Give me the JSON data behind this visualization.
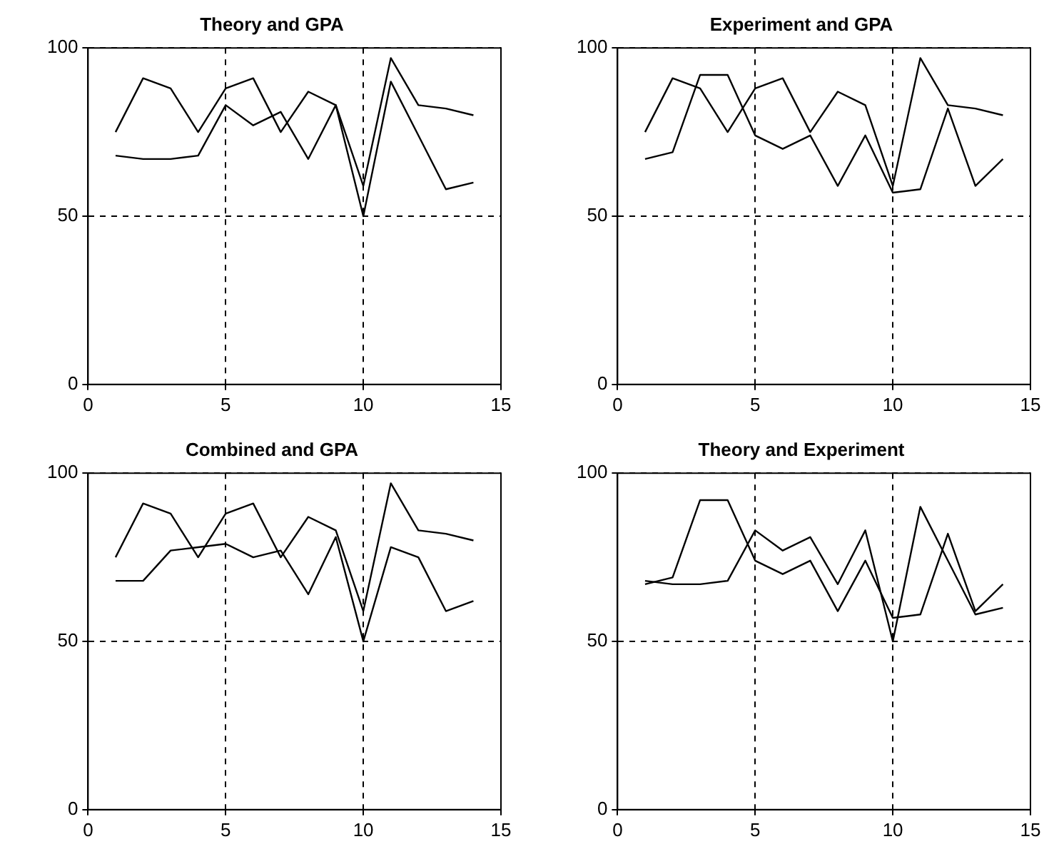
{
  "chart_data": [
    {
      "type": "line",
      "title": "Theory and GPA",
      "x": [
        1,
        2,
        3,
        4,
        5,
        6,
        7,
        8,
        9,
        10,
        11,
        12,
        13,
        14
      ],
      "xlim": [
        0,
        15
      ],
      "xticks": [
        0,
        5,
        10,
        15
      ],
      "ylim": [
        0,
        100
      ],
      "yticks": [
        0,
        50,
        100
      ],
      "grid": true,
      "legend": false,
      "line_style": "solid",
      "marker": "none",
      "series": [
        {
          "color": "#000000",
          "values": [
            75,
            91,
            88,
            75,
            88,
            91,
            75,
            87,
            83,
            59,
            97,
            83,
            82,
            80
          ]
        },
        {
          "color": "#000000",
          "values": [
            68,
            67,
            67,
            68,
            83,
            77,
            81,
            67,
            83,
            50,
            90,
            74,
            58,
            60
          ]
        }
      ]
    },
    {
      "type": "line",
      "title": "Experiment and GPA",
      "x": [
        1,
        2,
        3,
        4,
        5,
        6,
        7,
        8,
        9,
        10,
        11,
        12,
        13,
        14
      ],
      "xlim": [
        0,
        15
      ],
      "xticks": [
        0,
        5,
        10,
        15
      ],
      "ylim": [
        0,
        100
      ],
      "yticks": [
        0,
        50,
        100
      ],
      "grid": true,
      "legend": false,
      "line_style": "solid",
      "marker": "none",
      "series": [
        {
          "color": "#000000",
          "values": [
            75,
            91,
            88,
            75,
            88,
            91,
            75,
            87,
            83,
            59,
            97,
            83,
            82,
            80
          ]
        },
        {
          "color": "#000000",
          "values": [
            67,
            69,
            92,
            92,
            74,
            70,
            74,
            59,
            74,
            57,
            58,
            82,
            59,
            67
          ]
        }
      ]
    },
    {
      "type": "line",
      "title": "Combined and GPA",
      "x": [
        1,
        2,
        3,
        4,
        5,
        6,
        7,
        8,
        9,
        10,
        11,
        12,
        13,
        14
      ],
      "xlim": [
        0,
        15
      ],
      "xticks": [
        0,
        5,
        10,
        15
      ],
      "ylim": [
        0,
        100
      ],
      "yticks": [
        0,
        50,
        100
      ],
      "grid": true,
      "legend": false,
      "line_style": "solid",
      "marker": "none",
      "series": [
        {
          "color": "#000000",
          "values": [
            75,
            91,
            88,
            75,
            88,
            91,
            75,
            87,
            83,
            59,
            97,
            83,
            82,
            80
          ]
        },
        {
          "color": "#000000",
          "values": [
            68,
            68,
            77,
            78,
            79,
            75,
            77,
            64,
            81,
            50,
            78,
            75,
            59,
            62
          ]
        }
      ]
    },
    {
      "type": "line",
      "title": "Theory and Experiment",
      "x": [
        1,
        2,
        3,
        4,
        5,
        6,
        7,
        8,
        9,
        10,
        11,
        12,
        13,
        14
      ],
      "xlim": [
        0,
        15
      ],
      "xticks": [
        0,
        5,
        10,
        15
      ],
      "ylim": [
        0,
        100
      ],
      "yticks": [
        0,
        50,
        100
      ],
      "grid": true,
      "legend": false,
      "line_style": "solid",
      "marker": "none",
      "series": [
        {
          "color": "#000000",
          "values": [
            68,
            67,
            67,
            68,
            83,
            77,
            81,
            67,
            83,
            50,
            90,
            74,
            58,
            60
          ]
        },
        {
          "color": "#000000",
          "values": [
            67,
            69,
            92,
            92,
            74,
            70,
            74,
            59,
            74,
            57,
            58,
            82,
            59,
            67
          ]
        }
      ]
    }
  ]
}
